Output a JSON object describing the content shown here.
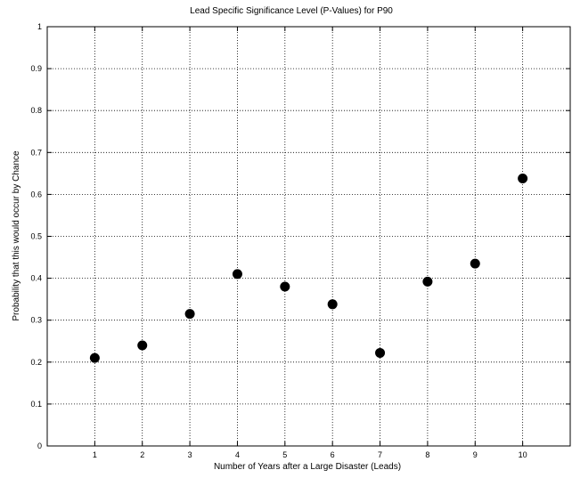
{
  "chart_data": {
    "type": "scatter",
    "title": "Lead Specific Significance Level (P-Values) for P90",
    "xlabel": "Number of Years after a Large Disaster (Leads)",
    "ylabel": "Probability that this would occur by Chance",
    "xlim": [
      0,
      11
    ],
    "ylim": [
      0,
      1
    ],
    "grid": true,
    "x_ticks": [
      1,
      2,
      3,
      4,
      5,
      6,
      7,
      8,
      9,
      10
    ],
    "y_ticks": [
      0,
      0.1,
      0.2,
      0.3,
      0.4,
      0.5,
      0.6,
      0.7,
      0.8,
      0.9,
      1
    ],
    "x_tick_labels": [
      "1",
      "2",
      "3",
      "4",
      "5",
      "6",
      "7",
      "8",
      "9",
      "10"
    ],
    "y_tick_labels": [
      "0",
      "0.1",
      "0.2",
      "0.3",
      "0.4",
      "0.5",
      "0.6",
      "0.7",
      "0.8",
      "0.9",
      "1"
    ],
    "marker_color": "#000000",
    "x": [
      1,
      2,
      3,
      4,
      5,
      6,
      7,
      8,
      9,
      10
    ],
    "y": [
      0.21,
      0.24,
      0.315,
      0.41,
      0.38,
      0.338,
      0.222,
      0.392,
      0.435,
      0.638
    ]
  }
}
